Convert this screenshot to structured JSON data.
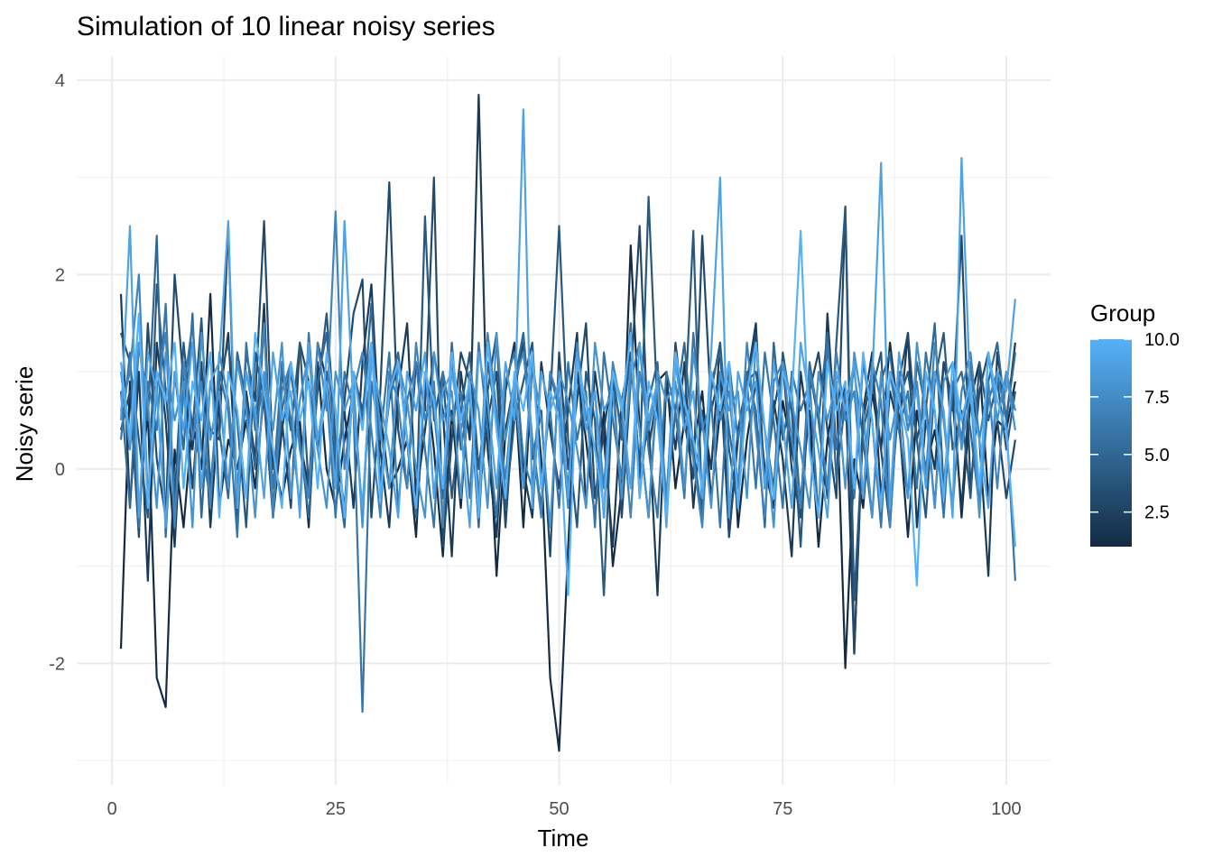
{
  "chart_data": {
    "type": "line",
    "title": "Simulation of 10 linear noisy series",
    "xlabel": "Time",
    "ylabel": "Noisy serie",
    "xlim": [
      0,
      100
    ],
    "ylim": [
      -3.0,
      4.0
    ],
    "x_ticks": [
      0,
      25,
      50,
      75,
      100
    ],
    "x_tick_labels": [
      "0",
      "25",
      "50",
      "75",
      "100"
    ],
    "y_ticks": [
      -2,
      0,
      2,
      4
    ],
    "y_tick_labels": [
      "-2",
      "0",
      "2",
      "4"
    ],
    "grid": true,
    "legend": {
      "title": "Group",
      "position": "right",
      "type": "colorbar",
      "range": [
        1,
        10
      ],
      "breaks": [
        2.5,
        5.0,
        7.5,
        10.0
      ],
      "break_labels": [
        "2.5",
        "5.0",
        "7.5",
        "10.0"
      ],
      "low_color": "#132B43",
      "high_color": "#56B1F7"
    },
    "series": [
      {
        "group": 1,
        "values": [
          -1.85,
          0.9,
          -0.4,
          0.6,
          -2.15,
          -2.45,
          0.2,
          -0.6,
          0.5,
          0.0,
          1.8,
          -0.4,
          0.3,
          0.0,
          0.5,
          -0.2,
          0.8,
          0.1,
          -0.3,
          0.2,
          0.5,
          -0.6,
          1.1,
          0.0,
          -0.4,
          0.3,
          0.8,
          -0.5,
          1.2,
          0.6,
          -0.2,
          0.0,
          0.3,
          -0.7,
          1.0,
          0.2,
          -0.9,
          0.6,
          -0.4,
          1.0,
          -0.3,
          0.8,
          -1.1,
          0.4,
          0.9,
          -0.6,
          1.1,
          0.1,
          -2.15,
          -2.9,
          -0.8,
          1.0,
          0.3,
          -0.5,
          0.6,
          -1.0,
          -0.2,
          2.3,
          0.4,
          -0.5,
          0.9,
          1.0,
          -0.2,
          0.5,
          0.2,
          0.8,
          -0.3,
          0.6,
          1.1,
          -0.6,
          0.3,
          0.9,
          0.0,
          -0.4,
          0.7,
          0.2,
          -0.3,
          0.6,
          -0.8,
          0.3,
          0.9,
          -2.05,
          0.1,
          -0.4,
          0.8,
          0.2,
          1.3,
          0.5,
          -0.7,
          0.6,
          0.0,
          0.4,
          -0.2,
          0.9,
          -0.5,
          0.7,
          1.1,
          -0.3,
          0.5,
          0.4,
          0.9
        ]
      },
      {
        "group": 2,
        "values": [
          1.8,
          -0.4,
          1.0,
          -1.15,
          1.3,
          0.5,
          -0.8,
          0.9,
          0.2,
          1.1,
          -0.6,
          0.7,
          1.4,
          -0.3,
          0.8,
          0.1,
          1.7,
          -0.5,
          0.4,
          1.0,
          0.3,
          -0.2,
          1.3,
          0.9,
          -0.1,
          0.6,
          -0.4,
          1.1,
          1.9,
          0.2,
          -0.6,
          0.8,
          1.5,
          -0.3,
          0.4,
          1.2,
          0.6,
          -0.9,
          1.0,
          0.3,
          3.85,
          0.2,
          -0.7,
          0.8,
          1.3,
          0.0,
          -0.5,
          1.1,
          0.4,
          -0.2,
          0.6,
          1.4,
          -0.4,
          1.0,
          0.3,
          -0.8,
          0.7,
          1.2,
          -0.1,
          0.5,
          -1.3,
          0.9,
          0.2,
          1.1,
          -0.4,
          0.6,
          0.0,
          1.3,
          -0.7,
          0.4,
          0.9,
          1.5,
          -0.2,
          0.7,
          0.1,
          -0.9,
          1.0,
          0.3,
          -0.5,
          1.6,
          0.2,
          0.9,
          -1.9,
          0.6,
          1.2,
          -0.3,
          0.8,
          0.4,
          1.4,
          -0.6,
          0.5,
          0.0,
          1.1,
          0.7,
          -0.4,
          0.9,
          0.3,
          -1.1,
          1.2,
          0.5,
          1.3
        ]
      },
      {
        "group": 3,
        "values": [
          0.4,
          0.8,
          -0.7,
          1.5,
          0.1,
          -0.5,
          2.0,
          0.9,
          -0.2,
          1.0,
          0.4,
          0.3,
          2.5,
          -0.6,
          1.2,
          0.7,
          2.55,
          0.0,
          0.5,
          -0.4,
          1.3,
          0.9,
          0.2,
          1.0,
          -0.1,
          0.7,
          1.6,
          1.95,
          -0.5,
          0.8,
          2.95,
          0.4,
          -0.2,
          1.1,
          0.6,
          3.0,
          -0.8,
          0.3,
          1.2,
          0.9,
          -0.3,
          0.5,
          1.0,
          -0.6,
          0.8,
          1.3,
          0.1,
          0.6,
          -0.9,
          1.2,
          0.0,
          0.7,
          1.5,
          -0.3,
          0.4,
          1.0,
          -0.5,
          0.9,
          2.5,
          0.2,
          0.8,
          -0.4,
          1.3,
          0.5,
          -0.1,
          2.4,
          0.6,
          1.0,
          -0.7,
          0.3,
          0.9,
          1.4,
          -0.2,
          0.6,
          1.1,
          0.0,
          -0.5,
          0.8,
          1.2,
          0.4,
          -0.3,
          2.7,
          -1.9,
          0.5,
          1.0,
          0.2,
          -0.6,
          0.9,
          1.4,
          0.3,
          0.7,
          -0.4,
          1.1,
          0.6,
          2.4,
          -0.2,
          0.8,
          1.2,
          0.5,
          -0.3,
          0.3
        ]
      },
      {
        "group": 4,
        "values": [
          1.4,
          1.1,
          0.3,
          -0.5,
          1.9,
          0.8,
          -0.3,
          1.3,
          0.4,
          1.55,
          -0.2,
          0.9,
          1.3,
          0.5,
          -0.6,
          1.2,
          0.7,
          -0.5,
          1.0,
          0.4,
          1.3,
          -0.2,
          0.8,
          1.6,
          0.3,
          -0.4,
          1.0,
          0.6,
          1.3,
          -0.1,
          0.7,
          1.1,
          0.3,
          -0.5,
          2.6,
          0.5,
          1.0,
          -0.3,
          0.6,
          1.2,
          0.0,
          0.8,
          1.4,
          -0.4,
          0.5,
          0.9,
          1.3,
          -0.2,
          0.7,
          2.5,
          0.3,
          -0.6,
          1.0,
          0.5,
          -1.3,
          0.9,
          0.4,
          1.2,
          0.0,
          2.8,
          0.6,
          -0.3,
          1.1,
          0.5,
          2.45,
          -0.5,
          0.8,
          1.3,
          0.2,
          -0.4,
          0.9,
          1.0,
          0.4,
          -0.2,
          1.2,
          0.6,
          -0.8,
          1.0,
          0.5,
          -0.3,
          1.3,
          2.7,
          -1.35,
          0.4,
          0.8,
          1.2,
          -0.4,
          0.7,
          1.0,
          0.3,
          -0.5,
          0.9,
          1.4,
          0.2,
          0.6,
          -0.3,
          1.1,
          0.5,
          0.9,
          0.2,
          0.8
        ]
      },
      {
        "group": 5,
        "values": [
          0.8,
          -0.4,
          1.3,
          0.5,
          2.4,
          -0.7,
          1.0,
          0.2,
          1.6,
          -0.5,
          0.9,
          0.4,
          -0.3,
          1.2,
          0.7,
          0.0,
          1.5,
          -0.4,
          0.6,
          1.1,
          0.3,
          -0.5,
          0.9,
          1.4,
          0.1,
          -0.6,
          1.0,
          0.5,
          1.7,
          -0.2,
          0.8,
          1.2,
          0.3,
          -0.5,
          1.0,
          0.6,
          -0.3,
          1.3,
          0.2,
          0.8,
          -0.6,
          1.1,
          0.5,
          -0.1,
          0.9,
          1.4,
          0.3,
          -0.4,
          1.0,
          0.6,
          -0.2,
          1.2,
          0.4,
          0.8,
          -0.5,
          1.0,
          0.3,
          1.5,
          -0.3,
          0.7,
          1.1,
          -0.4,
          0.6,
          1.3,
          0.2,
          -0.5,
          0.9,
          1.2,
          0.4,
          -0.2,
          1.0,
          0.6,
          -0.6,
          1.3,
          0.3,
          0.8,
          -0.4,
          1.1,
          0.5,
          1.4,
          -0.1,
          0.7,
          1.0,
          0.3,
          -0.5,
          0.9,
          1.2,
          0.4,
          -0.3,
          1.1,
          0.6,
          1.5,
          -0.2,
          0.8,
          1.0,
          0.4,
          -0.4,
          0.9,
          1.3,
          0.5,
          1.2
        ]
      },
      {
        "group": 6,
        "values": [
          0.3,
          1.2,
          -0.6,
          0.9,
          0.4,
          1.7,
          -0.5,
          0.8,
          1.5,
          0.2,
          -0.3,
          1.0,
          0.6,
          -0.7,
          1.3,
          0.4,
          0.9,
          -0.2,
          1.1,
          0.5,
          -0.4,
          1.4,
          0.2,
          0.8,
          -0.5,
          1.0,
          0.6,
          -2.5,
          0.9,
          0.3,
          1.2,
          -0.4,
          0.7,
          1.1,
          0.2,
          -0.6,
          1.0,
          0.5,
          0.8,
          -0.3,
          1.3,
          0.4,
          -0.5,
          0.9,
          1.2,
          0.1,
          -0.2,
          1.0,
          0.6,
          -0.4,
          1.1,
          0.3,
          0.8,
          -0.6,
          1.2,
          0.5,
          -0.1,
          0.9,
          1.3,
          0.2,
          -0.5,
          1.0,
          0.6,
          -0.3,
          1.4,
          0.4,
          0.7,
          -0.6,
          1.1,
          0.3,
          0.9,
          -0.2,
          1.2,
          0.5,
          -0.4,
          1.0,
          0.6,
          0.9,
          -0.5,
          1.3,
          0.2,
          0.8,
          -0.3,
          1.1,
          0.5,
          -0.6,
          1.0,
          0.4,
          0.8,
          -0.2,
          1.2,
          0.6,
          -0.5,
          0.9,
          0.3,
          1.1,
          -0.4,
          0.7,
          1.0,
          0.5,
          -1.15
        ]
      },
      {
        "group": 7,
        "values": [
          0.6,
          1.0,
          2.0,
          -0.3,
          0.8,
          1.4,
          -0.6,
          1.1,
          0.3,
          0.9,
          -0.4,
          1.2,
          0.7,
          -0.2,
          1.0,
          0.5,
          1.5,
          -0.5,
          0.8,
          1.1,
          0.2,
          -0.3,
          1.3,
          0.6,
          2.65,
          0.0,
          0.8,
          1.2,
          0.4,
          -0.5,
          1.0,
          0.7,
          -0.2,
          1.3,
          0.5,
          0.9,
          -0.6,
          1.1,
          0.4,
          0.8,
          -0.3,
          1.4,
          0.6,
          -0.1,
          0.9,
          1.2,
          0.3,
          -0.5,
          1.0,
          0.7,
          -0.4,
          1.3,
          0.5,
          0.8,
          -0.2,
          1.1,
          0.6,
          -0.5,
          1.0,
          0.4,
          0.9,
          -0.3,
          1.2,
          0.7,
          0.1,
          -0.6,
          1.0,
          0.5,
          0.8,
          -0.2,
          1.3,
          0.4,
          -0.5,
          0.9,
          1.1,
          0.3,
          -0.4,
          1.0,
          0.6,
          -0.2,
          1.2,
          0.5,
          0.8,
          -0.3,
          1.1,
          0.7,
          -0.6,
          1.0,
          0.4,
          0.9,
          -0.1,
          1.3,
          0.5,
          -0.4,
          0.8,
          1.2,
          0.3,
          0.9,
          -0.2,
          1.0,
          0.6
        ]
      },
      {
        "group": 8,
        "values": [
          1.0,
          0.2,
          1.3,
          0.7,
          -0.4,
          1.2,
          0.5,
          0.9,
          -0.6,
          1.4,
          0.3,
          0.8,
          -0.2,
          1.1,
          0.6,
          -0.5,
          1.0,
          0.4,
          1.3,
          -0.3,
          0.7,
          1.2,
          0.2,
          -0.4,
          1.0,
          0.6,
          0.9,
          -0.6,
          1.3,
          0.4,
          -0.2,
          1.1,
          0.7,
          0.0,
          -0.5,
          1.2,
          0.5,
          0.8,
          -0.3,
          1.0,
          0.6,
          -0.4,
          1.4,
          0.3,
          0.9,
          -0.2,
          1.1,
          0.5,
          -0.6,
          1.0,
          0.7,
          0.2,
          -0.4,
          1.3,
          0.6,
          0.8,
          -0.3,
          1.1,
          0.4,
          -0.5,
          1.0,
          0.7,
          0.9,
          -0.2,
          1.2,
          0.5,
          -0.4,
          1.0,
          0.6,
          0.8,
          -0.3,
          1.3,
          0.4,
          -0.6,
          1.1,
          0.7,
          0.2,
          -0.4,
          1.0,
          0.5,
          0.9,
          -0.2,
          1.2,
          0.6,
          -0.5,
          1.0,
          0.3,
          0.8,
          -0.3,
          1.3,
          0.6,
          -0.4,
          0.9,
          1.1,
          0.2,
          0.8,
          -0.5,
          1.2,
          0.5,
          1.0,
          0.4
        ]
      },
      {
        "group": 9,
        "values": [
          0.5,
          2.5,
          -0.5,
          1.2,
          0.8,
          -0.6,
          1.0,
          0.4,
          1.3,
          -0.2,
          0.9,
          1.1,
          2.55,
          -0.4,
          1.0,
          0.6,
          -0.3,
          1.2,
          0.5,
          0.8,
          -0.5,
          1.3,
          0.3,
          0.9,
          -0.2,
          2.55,
          0.6,
          -0.4,
          1.1,
          0.7,
          0.2,
          -0.5,
          1.0,
          0.6,
          1.2,
          -0.3,
          0.8,
          1.0,
          0.4,
          -0.6,
          1.2,
          0.7,
          -0.2,
          1.1,
          0.5,
          3.7,
          -0.4,
          1.0,
          0.6,
          0.9,
          -0.3,
          1.2,
          0.4,
          0.8,
          -0.5,
          1.0,
          0.7,
          -0.2,
          1.3,
          0.5,
          0.9,
          -0.6,
          1.1,
          0.4,
          0.8,
          -0.3,
          1.2,
          3.0,
          -0.5,
          1.0,
          0.6,
          0.9,
          -0.2,
          1.1,
          0.5,
          -0.4,
          1.3,
          0.7,
          0.2,
          -0.5,
          1.0,
          0.6,
          1.1,
          -0.3,
          0.9,
          3.15,
          -0.4,
          1.2,
          0.5,
          0.8,
          -0.2,
          1.0,
          0.6,
          -0.5,
          3.2,
          0.7,
          0.3,
          -0.4,
          1.0,
          0.8,
          1.75
        ]
      },
      {
        "group": 10,
        "values": [
          1.1,
          0.3,
          1.6,
          -0.4,
          1.0,
          0.7,
          1.3,
          -0.2,
          0.9,
          0.5,
          1.2,
          -0.5,
          1.0,
          0.6,
          -0.3,
          1.4,
          0.8,
          0.2,
          -0.4,
          1.1,
          0.5,
          0.9,
          -0.2,
          1.2,
          0.6,
          -0.5,
          1.0,
          0.4,
          1.3,
          -0.3,
          0.8,
          1.1,
          0.3,
          -0.4,
          1.0,
          0.7,
          -0.2,
          1.2,
          0.5,
          0.9,
          -0.5,
          1.3,
          0.4,
          -0.3,
          1.0,
          0.6,
          1.2,
          -0.2,
          0.8,
          0.5,
          -1.3,
          1.1,
          0.7,
          0.2,
          -0.4,
          1.0,
          0.6,
          1.4,
          -0.3,
          0.9,
          0.5,
          -0.5,
          1.2,
          0.7,
          0.3,
          -0.2,
          1.0,
          0.6,
          1.1,
          -0.4,
          0.8,
          1.3,
          0.4,
          -0.3,
          1.0,
          0.7,
          2.45,
          0.2,
          -0.5,
          1.1,
          0.6,
          0.9,
          -0.2,
          1.2,
          0.5,
          -0.4,
          1.0,
          0.7,
          0.3,
          -1.2,
          1.0,
          0.6,
          -0.3,
          1.1,
          0.5,
          0.9,
          -0.2,
          1.2,
          0.7,
          0.4,
          -0.8
        ]
      }
    ]
  }
}
